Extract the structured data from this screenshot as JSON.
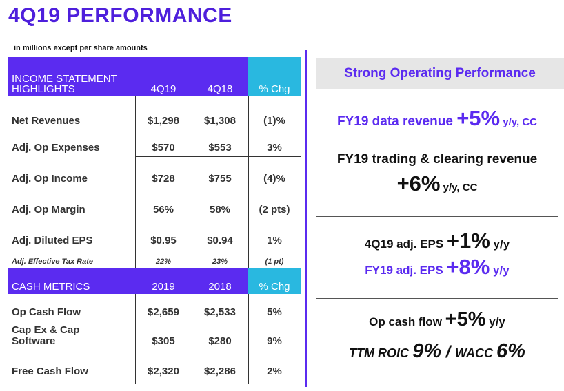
{
  "title": "4Q19 PERFORMANCE",
  "subtitle": "in millions except per share amounts",
  "income_header": {
    "label_line1": "INCOME STATEMENT",
    "label_line2": "HIGHLIGHTS",
    "col1": "4Q19",
    "col2": "4Q18",
    "col3": "% Chg"
  },
  "income_rows": [
    {
      "label": "Net Revenues",
      "v1": "$1,298",
      "v2": "$1,308",
      "chg": "(1)%"
    },
    {
      "label": "Adj. Op Expenses",
      "v1": "$570",
      "v2": "$553",
      "chg": "3%"
    },
    {
      "label": "Adj. Op Income",
      "v1": "$728",
      "v2": "$755",
      "chg": "(4)%"
    },
    {
      "label": "Adj. Op Margin",
      "v1": "56%",
      "v2": "58%",
      "chg": "(2 pts)"
    },
    {
      "label": "Adj. Diluted EPS",
      "v1": "$0.95",
      "v2": "$0.94",
      "chg": "1%"
    },
    {
      "label": "Adj. Effective Tax Rate",
      "v1": "22%",
      "v2": "23%",
      "chg": "(1 pt)"
    }
  ],
  "cash_header": {
    "label": "CASH METRICS",
    "col1": "2019",
    "col2": "2018",
    "col3": "% Chg"
  },
  "cash_rows": [
    {
      "label": "Op Cash Flow",
      "v1": "$2,659",
      "v2": "$2,533",
      "chg": "5%"
    },
    {
      "label_line1": "Cap Ex & Cap",
      "label_line2": "Software",
      "v1": "$305",
      "v2": "$280",
      "chg": "9%"
    },
    {
      "label": "Free Cash Flow",
      "v1": "$2,320",
      "v2": "$2,286",
      "chg": "2%"
    }
  ],
  "panel": {
    "heading": "Strong Operating Performance",
    "data_rev": {
      "prefix": "FY19 data revenue ",
      "big": "+5%",
      "suffix": " y/y, CC"
    },
    "trading_line1": "FY19 trading & clearing revenue",
    "trading_line2": {
      "big": "+6%",
      "suffix": " y/y, CC"
    },
    "eps_q": {
      "prefix": "4Q19 adj. EPS ",
      "big": "+1%",
      "suffix": " y/y"
    },
    "eps_fy": {
      "prefix": "FY19 adj. EPS ",
      "big": "+8%",
      "suffix": " y/y"
    },
    "ocf": {
      "prefix": "Op cash flow ",
      "big": "+5%",
      "suffix": " y/y"
    },
    "roic": {
      "a": "TTM ROIC ",
      "b": "9%",
      "c": " / ",
      "d": "WACC ",
      "e": "6%"
    }
  },
  "colors": {
    "purple": "#5b2bf0",
    "cyan": "#29b8e0",
    "panel_bg": "#e6e6e6"
  }
}
